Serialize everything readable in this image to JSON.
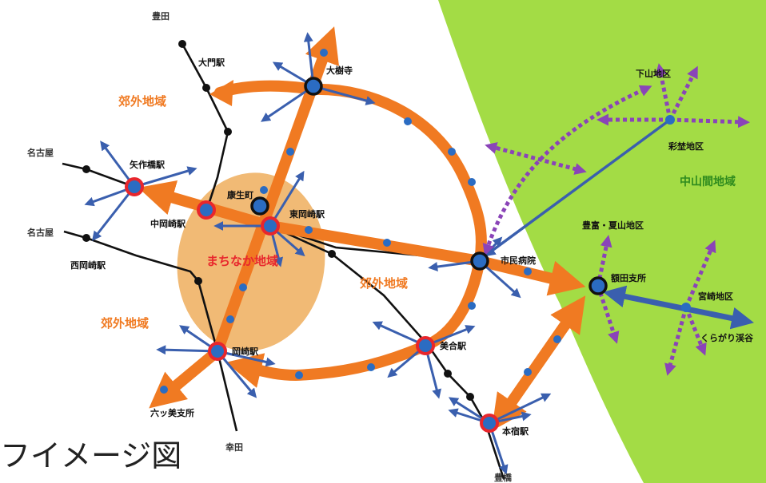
{
  "caption": "フイメージ図",
  "colors": {
    "mountain_area": "#a3dc45",
    "orange_route": "#f07a22",
    "center_ellipse": "#f0b266",
    "access_arrow": "#3a5fae",
    "purple_arrow": "#8a44b8",
    "rail": "#111111",
    "station_red": "#e8262c",
    "station_blue": "#2b6cc2",
    "text_orange": "#f07a22",
    "text_red": "#e8262c",
    "text_green": "#2e8b1e"
  },
  "areas": {
    "suburban_1": "郊外地域",
    "suburban_2": "郊外地域",
    "suburban_3": "郊外地域",
    "downtown": "まちなか地域",
    "mountain": "中山間地域"
  },
  "stations": {
    "okazaki": "岡崎駅",
    "higashi_okazaki": "東岡崎駅",
    "naka_okazaki": "中岡崎駅",
    "yahagibashi": "矢作橋駅",
    "nishi_okazaki": "西岡崎駅",
    "ohmon": "大門駅",
    "mikawa": "美合駅",
    "motojuku": "本宿駅",
    "daijuji": "大樹寺",
    "shimin_byoin": "市民病院",
    "kosei_cho": "康生町",
    "nukata_shisho": "額田支所",
    "mutsumi_shisho": "六ッ美支所"
  },
  "places": {
    "toyota": "豊田",
    "nagoya_1": "名古屋",
    "nagoya_2": "名古屋",
    "kota": "幸田",
    "toyohashi": "豊橋",
    "shimoyama": "下山地区",
    "ayado": "彩埜地区",
    "toyotomi": "豊富・夏山地区",
    "miyazaki": "宮崎地区",
    "kuragari": "くらがり渓谷"
  }
}
